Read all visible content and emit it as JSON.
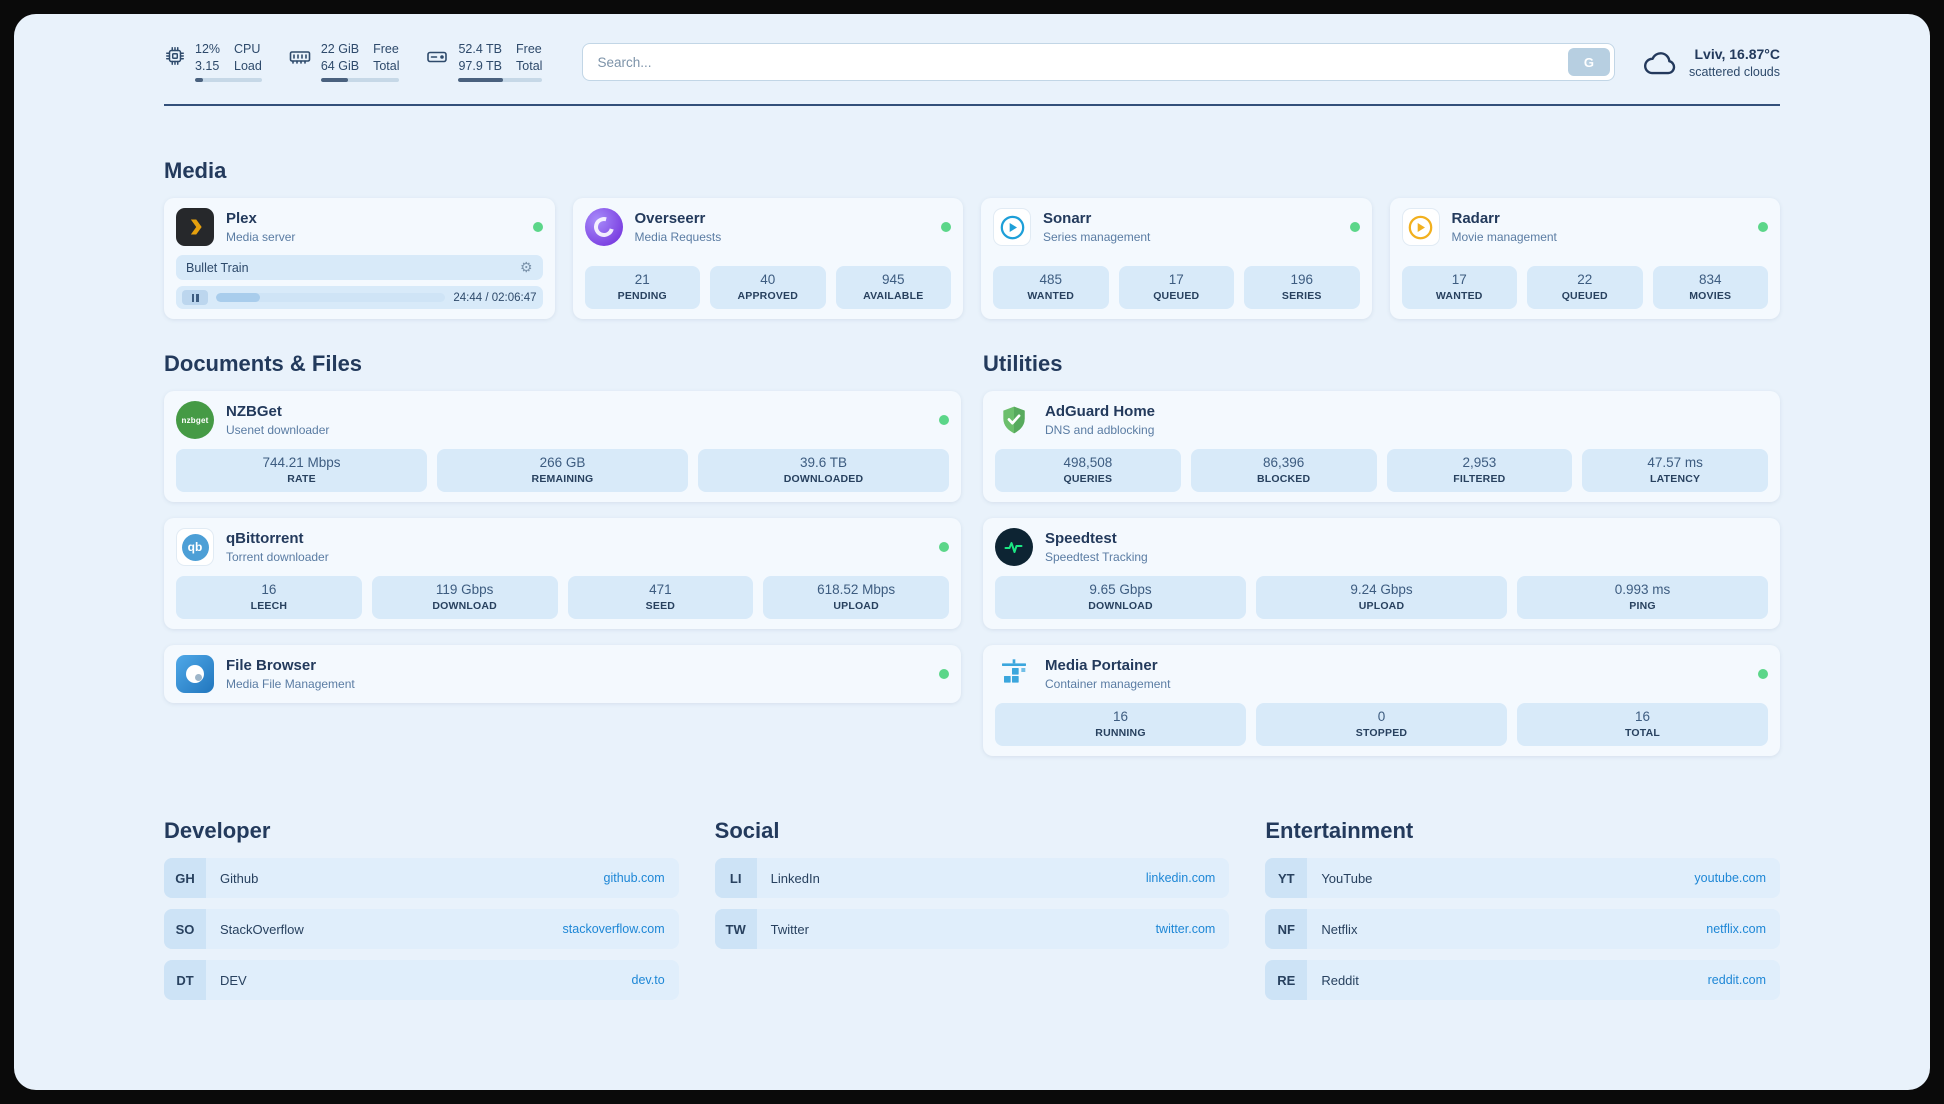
{
  "theme": {
    "accent_link": "#1e87d6",
    "status_online": "#5bd689",
    "background": "#e9f2fb",
    "card_background": "#f4f9fe",
    "stat_background": "#d8eaf9"
  },
  "header": {
    "cpu": {
      "usage": "12%",
      "load": "3.15",
      "label_top": "CPU",
      "label_bottom": "Load",
      "bar_percent": 12
    },
    "ram": {
      "free": "22 GiB",
      "total": "64 GiB",
      "label_top": "Free",
      "label_bottom": "Total",
      "bar_percent": 34
    },
    "disk": {
      "free": "52.4 TB",
      "total": "97.9 TB",
      "label_top": "Free",
      "label_bottom": "Total",
      "bar_percent": 53
    },
    "search": {
      "placeholder": "Search...",
      "engine_button": "G"
    },
    "weather": {
      "location": "Lviv, 16.87°C",
      "condition": "scattered clouds"
    }
  },
  "media": {
    "title": "Media",
    "plex": {
      "title": "Plex",
      "subtitle": "Media server",
      "now_playing": "Bullet Train",
      "time": "24:44 / 02:06:47",
      "progress_percent": 19
    },
    "overseerr": {
      "title": "Overseerr",
      "subtitle": "Media Requests",
      "stats": [
        {
          "value": "21",
          "label": "PENDING"
        },
        {
          "value": "40",
          "label": "APPROVED"
        },
        {
          "value": "945",
          "label": "AVAILABLE"
        }
      ]
    },
    "sonarr": {
      "title": "Sonarr",
      "subtitle": "Series management",
      "stats": [
        {
          "value": "485",
          "label": "WANTED"
        },
        {
          "value": "17",
          "label": "QUEUED"
        },
        {
          "value": "196",
          "label": "SERIES"
        }
      ]
    },
    "radarr": {
      "title": "Radarr",
      "subtitle": "Movie management",
      "stats": [
        {
          "value": "17",
          "label": "WANTED"
        },
        {
          "value": "22",
          "label": "QUEUED"
        },
        {
          "value": "834",
          "label": "MOVIES"
        }
      ]
    }
  },
  "documents": {
    "title": "Documents & Files",
    "nzbget": {
      "title": "NZBGet",
      "subtitle": "Usenet downloader",
      "stats": [
        {
          "value": "744.21 Mbps",
          "label": "RATE"
        },
        {
          "value": "266 GB",
          "label": "REMAINING"
        },
        {
          "value": "39.6 TB",
          "label": "DOWNLOADED"
        }
      ]
    },
    "qbittorrent": {
      "title": "qBittorrent",
      "subtitle": "Torrent downloader",
      "stats": [
        {
          "value": "16",
          "label": "LEECH"
        },
        {
          "value": "119 Gbps",
          "label": "DOWNLOAD"
        },
        {
          "value": "471",
          "label": "SEED"
        },
        {
          "value": "618.52 Mbps",
          "label": "UPLOAD"
        }
      ]
    },
    "filebrowser": {
      "title": "File Browser",
      "subtitle": "Media File Management"
    }
  },
  "utilities": {
    "title": "Utilities",
    "adguard": {
      "title": "AdGuard Home",
      "subtitle": "DNS and adblocking",
      "stats": [
        {
          "value": "498,508",
          "label": "QUERIES"
        },
        {
          "value": "86,396",
          "label": "BLOCKED"
        },
        {
          "value": "2,953",
          "label": "FILTERED"
        },
        {
          "value": "47.57 ms",
          "label": "LATENCY"
        }
      ]
    },
    "speedtest": {
      "title": "Speedtest",
      "subtitle": "Speedtest Tracking",
      "stats": [
        {
          "value": "9.65 Gbps",
          "label": "DOWNLOAD"
        },
        {
          "value": "9.24 Gbps",
          "label": "UPLOAD"
        },
        {
          "value": "0.993 ms",
          "label": "PING"
        }
      ]
    },
    "portainer": {
      "title": "Media Portainer",
      "subtitle": "Container management",
      "stats": [
        {
          "value": "16",
          "label": "RUNNING"
        },
        {
          "value": "0",
          "label": "STOPPED"
        },
        {
          "value": "16",
          "label": "TOTAL"
        }
      ]
    }
  },
  "bookmarks": {
    "developer": {
      "title": "Developer",
      "items": [
        {
          "abbr": "GH",
          "name": "Github",
          "url": "github.com"
        },
        {
          "abbr": "SO",
          "name": "StackOverflow",
          "url": "stackoverflow.com"
        },
        {
          "abbr": "DT",
          "name": "DEV",
          "url": "dev.to"
        }
      ]
    },
    "social": {
      "title": "Social",
      "items": [
        {
          "abbr": "LI",
          "name": "LinkedIn",
          "url": "linkedin.com"
        },
        {
          "abbr": "TW",
          "name": "Twitter",
          "url": "twitter.com"
        }
      ]
    },
    "entertainment": {
      "title": "Entertainment",
      "items": [
        {
          "abbr": "YT",
          "name": "YouTube",
          "url": "youtube.com"
        },
        {
          "abbr": "NF",
          "name": "Netflix",
          "url": "netflix.com"
        },
        {
          "abbr": "RE",
          "name": "Reddit",
          "url": "reddit.com"
        }
      ]
    }
  }
}
